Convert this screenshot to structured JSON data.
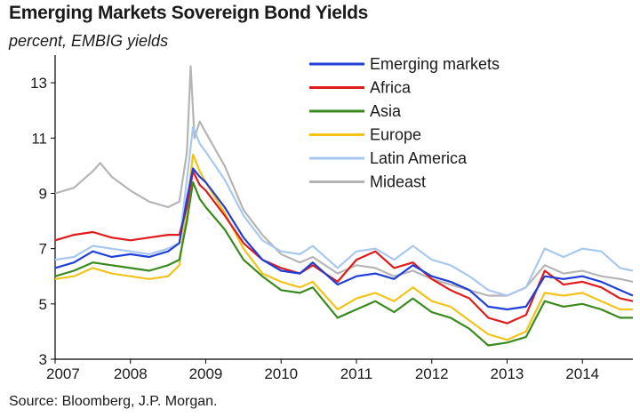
{
  "chart_data": {
    "type": "line",
    "title": "Emerging Markets Sovereign Bond Yields",
    "subtitle": "percent, EMBIG yields",
    "source": "Source: Bloomberg, J.P. Morgan.",
    "xlabel": "",
    "ylabel": "",
    "xlim": [
      2007,
      2014.67
    ],
    "ylim": [
      3,
      14
    ],
    "y_ticks": [
      3,
      5,
      7,
      9,
      11,
      13
    ],
    "x_ticks": [
      2007,
      2008,
      2009,
      2010,
      2011,
      2012,
      2013,
      2014
    ],
    "legend_position": "top-right",
    "series": [
      {
        "name": "Emerging markets",
        "color": "#1f3fd8",
        "points": [
          [
            2007.0,
            6.3
          ],
          [
            2007.25,
            6.5
          ],
          [
            2007.5,
            6.9
          ],
          [
            2007.75,
            6.7
          ],
          [
            2008.0,
            6.8
          ],
          [
            2008.25,
            6.7
          ],
          [
            2008.5,
            6.9
          ],
          [
            2008.65,
            7.2
          ],
          [
            2008.75,
            8.8
          ],
          [
            2008.83,
            9.9
          ],
          [
            2008.92,
            9.6
          ],
          [
            2009.0,
            9.4
          ],
          [
            2009.25,
            8.5
          ],
          [
            2009.5,
            7.4
          ],
          [
            2009.75,
            6.6
          ],
          [
            2010.0,
            6.2
          ],
          [
            2010.25,
            6.1
          ],
          [
            2010.42,
            6.5
          ],
          [
            2010.75,
            5.7
          ],
          [
            2011.0,
            6.0
          ],
          [
            2011.25,
            6.1
          ],
          [
            2011.5,
            5.9
          ],
          [
            2011.75,
            6.4
          ],
          [
            2012.0,
            6.0
          ],
          [
            2012.25,
            5.8
          ],
          [
            2012.5,
            5.5
          ],
          [
            2012.75,
            4.9
          ],
          [
            2013.0,
            4.8
          ],
          [
            2013.25,
            4.9
          ],
          [
            2013.5,
            6.0
          ],
          [
            2013.75,
            5.9
          ],
          [
            2014.0,
            6.0
          ],
          [
            2014.25,
            5.8
          ],
          [
            2014.5,
            5.5
          ],
          [
            2014.67,
            5.3
          ]
        ]
      },
      {
        "name": "Africa",
        "color": "#e01b1b",
        "points": [
          [
            2007.0,
            7.3
          ],
          [
            2007.25,
            7.5
          ],
          [
            2007.5,
            7.6
          ],
          [
            2007.75,
            7.4
          ],
          [
            2008.0,
            7.3
          ],
          [
            2008.25,
            7.4
          ],
          [
            2008.5,
            7.5
          ],
          [
            2008.65,
            7.5
          ],
          [
            2008.75,
            8.5
          ],
          [
            2008.83,
            9.8
          ],
          [
            2008.92,
            9.3
          ],
          [
            2009.0,
            9.1
          ],
          [
            2009.25,
            8.2
          ],
          [
            2009.5,
            7.2
          ],
          [
            2009.75,
            6.6
          ],
          [
            2010.0,
            6.3
          ],
          [
            2010.25,
            6.1
          ],
          [
            2010.42,
            6.4
          ],
          [
            2010.75,
            5.8
          ],
          [
            2011.0,
            6.6
          ],
          [
            2011.25,
            6.9
          ],
          [
            2011.5,
            6.3
          ],
          [
            2011.75,
            6.5
          ],
          [
            2012.0,
            5.9
          ],
          [
            2012.25,
            5.5
          ],
          [
            2012.5,
            5.2
          ],
          [
            2012.75,
            4.5
          ],
          [
            2013.0,
            4.3
          ],
          [
            2013.25,
            4.6
          ],
          [
            2013.5,
            6.2
          ],
          [
            2013.75,
            5.7
          ],
          [
            2014.0,
            5.8
          ],
          [
            2014.25,
            5.6
          ],
          [
            2014.5,
            5.2
          ],
          [
            2014.67,
            5.1
          ]
        ]
      },
      {
        "name": "Asia",
        "color": "#3a8a1e",
        "points": [
          [
            2007.0,
            6.0
          ],
          [
            2007.25,
            6.2
          ],
          [
            2007.5,
            6.5
          ],
          [
            2007.75,
            6.4
          ],
          [
            2008.0,
            6.3
          ],
          [
            2008.25,
            6.2
          ],
          [
            2008.5,
            6.4
          ],
          [
            2008.65,
            6.6
          ],
          [
            2008.75,
            8.0
          ],
          [
            2008.83,
            9.4
          ],
          [
            2008.92,
            8.8
          ],
          [
            2009.0,
            8.5
          ],
          [
            2009.25,
            7.7
          ],
          [
            2009.5,
            6.6
          ],
          [
            2009.75,
            6.0
          ],
          [
            2010.0,
            5.5
          ],
          [
            2010.25,
            5.4
          ],
          [
            2010.42,
            5.6
          ],
          [
            2010.75,
            4.5
          ],
          [
            2011.0,
            4.8
          ],
          [
            2011.25,
            5.1
          ],
          [
            2011.5,
            4.7
          ],
          [
            2011.75,
            5.2
          ],
          [
            2012.0,
            4.7
          ],
          [
            2012.25,
            4.5
          ],
          [
            2012.5,
            4.1
          ],
          [
            2012.75,
            3.5
          ],
          [
            2013.0,
            3.6
          ],
          [
            2013.25,
            3.8
          ],
          [
            2013.5,
            5.1
          ],
          [
            2013.75,
            4.9
          ],
          [
            2014.0,
            5.0
          ],
          [
            2014.25,
            4.8
          ],
          [
            2014.5,
            4.5
          ],
          [
            2014.67,
            4.5
          ]
        ]
      },
      {
        "name": "Europe",
        "color": "#f2c41a",
        "points": [
          [
            2007.0,
            5.9
          ],
          [
            2007.25,
            6.0
          ],
          [
            2007.5,
            6.3
          ],
          [
            2007.75,
            6.1
          ],
          [
            2008.0,
            6.0
          ],
          [
            2008.25,
            5.9
          ],
          [
            2008.5,
            6.0
          ],
          [
            2008.65,
            6.4
          ],
          [
            2008.75,
            8.5
          ],
          [
            2008.83,
            10.4
          ],
          [
            2008.92,
            9.8
          ],
          [
            2009.0,
            9.4
          ],
          [
            2009.25,
            8.3
          ],
          [
            2009.5,
            7.0
          ],
          [
            2009.75,
            6.1
          ],
          [
            2010.0,
            5.8
          ],
          [
            2010.25,
            5.6
          ],
          [
            2010.42,
            5.8
          ],
          [
            2010.75,
            4.8
          ],
          [
            2011.0,
            5.2
          ],
          [
            2011.25,
            5.4
          ],
          [
            2011.5,
            5.1
          ],
          [
            2011.75,
            5.6
          ],
          [
            2012.0,
            5.1
          ],
          [
            2012.25,
            4.9
          ],
          [
            2012.5,
            4.4
          ],
          [
            2012.75,
            3.9
          ],
          [
            2013.0,
            3.7
          ],
          [
            2013.25,
            4.0
          ],
          [
            2013.5,
            5.4
          ],
          [
            2013.75,
            5.3
          ],
          [
            2014.0,
            5.4
          ],
          [
            2014.25,
            5.1
          ],
          [
            2014.5,
            4.8
          ],
          [
            2014.67,
            4.8
          ]
        ]
      },
      {
        "name": "Latin America",
        "color": "#a8c8f0",
        "points": [
          [
            2007.0,
            6.6
          ],
          [
            2007.25,
            6.7
          ],
          [
            2007.5,
            7.1
          ],
          [
            2007.75,
            7.0
          ],
          [
            2008.0,
            6.9
          ],
          [
            2008.25,
            6.8
          ],
          [
            2008.5,
            7.0
          ],
          [
            2008.65,
            7.2
          ],
          [
            2008.75,
            9.5
          ],
          [
            2008.83,
            11.4
          ],
          [
            2008.92,
            10.8
          ],
          [
            2009.0,
            10.5
          ],
          [
            2009.25,
            9.5
          ],
          [
            2009.5,
            8.2
          ],
          [
            2009.75,
            7.3
          ],
          [
            2010.0,
            6.9
          ],
          [
            2010.25,
            6.8
          ],
          [
            2010.42,
            7.1
          ],
          [
            2010.75,
            6.3
          ],
          [
            2011.0,
            6.9
          ],
          [
            2011.25,
            7.0
          ],
          [
            2011.5,
            6.6
          ],
          [
            2011.75,
            7.1
          ],
          [
            2012.0,
            6.6
          ],
          [
            2012.25,
            6.4
          ],
          [
            2012.5,
            6.0
          ],
          [
            2012.75,
            5.5
          ],
          [
            2013.0,
            5.3
          ],
          [
            2013.25,
            5.6
          ],
          [
            2013.5,
            7.0
          ],
          [
            2013.75,
            6.7
          ],
          [
            2014.0,
            7.0
          ],
          [
            2014.25,
            6.9
          ],
          [
            2014.5,
            6.3
          ],
          [
            2014.67,
            6.2
          ]
        ]
      },
      {
        "name": "Mideast",
        "color": "#b5b5b5",
        "points": [
          [
            2007.0,
            9.0
          ],
          [
            2007.25,
            9.2
          ],
          [
            2007.5,
            9.8
          ],
          [
            2007.6,
            10.1
          ],
          [
            2007.75,
            9.6
          ],
          [
            2008.0,
            9.1
          ],
          [
            2008.25,
            8.7
          ],
          [
            2008.5,
            8.5
          ],
          [
            2008.65,
            8.7
          ],
          [
            2008.75,
            10.5
          ],
          [
            2008.8,
            13.6
          ],
          [
            2008.85,
            11.0
          ],
          [
            2008.92,
            11.6
          ],
          [
            2009.0,
            11.2
          ],
          [
            2009.25,
            10.0
          ],
          [
            2009.5,
            8.4
          ],
          [
            2009.75,
            7.5
          ],
          [
            2010.0,
            6.8
          ],
          [
            2010.25,
            6.5
          ],
          [
            2010.42,
            6.7
          ],
          [
            2010.75,
            6.1
          ],
          [
            2011.0,
            6.4
          ],
          [
            2011.25,
            6.3
          ],
          [
            2011.5,
            6.0
          ],
          [
            2011.75,
            6.2
          ],
          [
            2012.0,
            5.9
          ],
          [
            2012.25,
            5.7
          ],
          [
            2012.5,
            5.5
          ],
          [
            2012.75,
            5.3
          ],
          [
            2013.0,
            5.3
          ],
          [
            2013.25,
            5.6
          ],
          [
            2013.5,
            6.4
          ],
          [
            2013.75,
            6.1
          ],
          [
            2014.0,
            6.2
          ],
          [
            2014.25,
            6.0
          ],
          [
            2014.5,
            5.9
          ],
          [
            2014.67,
            5.8
          ]
        ]
      }
    ]
  }
}
